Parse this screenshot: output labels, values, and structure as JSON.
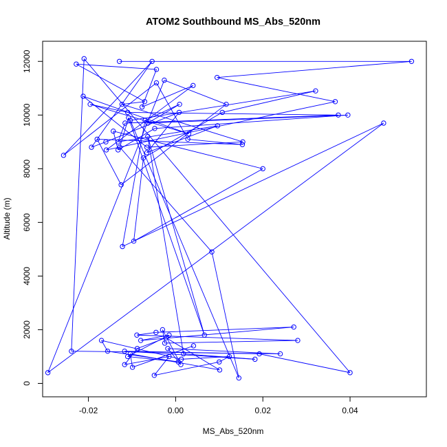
{
  "chart_data": {
    "type": "line",
    "title": "ATOM2 Southbound MS_Abs_520nm",
    "xlabel": "MS_Abs_520nm",
    "ylabel": "Altitude (m)",
    "xlim": [
      -0.0305,
      0.0575
    ],
    "ylim": [
      -500,
      12750
    ],
    "xticks": [
      -0.02,
      0.0,
      0.02,
      0.04
    ],
    "xtick_labels": [
      "-0.02",
      "0.00",
      "0.02",
      "0.04"
    ],
    "yticks": [
      0,
      2000,
      4000,
      6000,
      8000,
      10000,
      12000
    ],
    "ytick_labels": [
      "0",
      "2000",
      "4000",
      "6000",
      "8000",
      "10000",
      "12000"
    ],
    "grid": false,
    "legend": "none",
    "colors": {
      "series": "#0000ff",
      "axes": "#000000",
      "background": "#ffffff"
    },
    "series": [
      {
        "marker": "open-circle",
        "x": [
          -0.0129,
          0.0541,
          0.0095,
          0.0366,
          -0.0159,
          0.004,
          -0.0077,
          -0.0044,
          -0.0228,
          -0.0071,
          -0.0123,
          0.0154,
          -0.0066,
          -0.0212,
          0.003,
          -0.0196,
          -0.011,
          0.0373,
          -0.0116,
          -0.0132,
          0.0096,
          -0.0066,
          0.0008,
          -0.016,
          -0.0193,
          -0.0054,
          -0.0257,
          -0.0044,
          0.0028,
          0.0153,
          -0.018,
          -0.0125,
          0.0116,
          -0.0026,
          -0.0293,
          0.0477,
          -0.0122,
          -0.007,
          0.0009,
          -0.0064,
          0.0395,
          -0.0048,
          -0.0132,
          -0.0143,
          0.02,
          -0.0096,
          -0.0074,
          0.0107,
          0.0321,
          -0.0104,
          0.0145,
          0.0083,
          -0.0128,
          -0.0108,
          0.0066,
          -0.0064,
          0.0018,
          0.0182,
          -0.0117,
          0.0192,
          0.04,
          -0.021,
          -0.0239,
          0.024,
          -0.0018,
          0.0012,
          -0.003,
          -0.0025,
          0.028,
          -0.0089,
          -0.0045,
          0.0271,
          -0.008,
          -0.0015,
          -0.011,
          0.0006,
          -0.0156,
          -0.017,
          0.0013,
          0.0123,
          0.01,
          -0.0049,
          -0.0015,
          -0.0117,
          -0.0088,
          -0.0022,
          0.0101,
          -0.0104,
          -0.0099,
          0.0041
        ],
        "y": [
          12000,
          12000,
          11400,
          10500,
          8700,
          11100,
          10300,
          11700,
          11900,
          10500,
          10400,
          9000,
          8800,
          10700,
          9300,
          10400,
          10100,
          10000,
          9700,
          9000,
          9600,
          8600,
          10100,
          9000,
          8800,
          12000,
          8500,
          11200,
          9100,
          8900,
          9100,
          7400,
          10400,
          11300,
          400,
          9700,
          5100,
          9800,
          10400,
          9700,
          10000,
          9500,
          8700,
          9400,
          8000,
          5300,
          8400,
          10100,
          10900,
          9800,
          200,
          4900,
          8800,
          9900,
          1800,
          9200,
          1100,
          900,
          1200,
          1100,
          400,
          12100,
          1200,
          1100,
          1300,
          700,
          2000,
          1500,
          1600,
          1800,
          1900,
          2100,
          1600,
          1800,
          1000,
          800,
          1200,
          1600,
          900,
          1000,
          800,
          300,
          1000,
          700,
          1300,
          1700,
          500,
          1100,
          600,
          1400
        ]
      }
    ]
  }
}
